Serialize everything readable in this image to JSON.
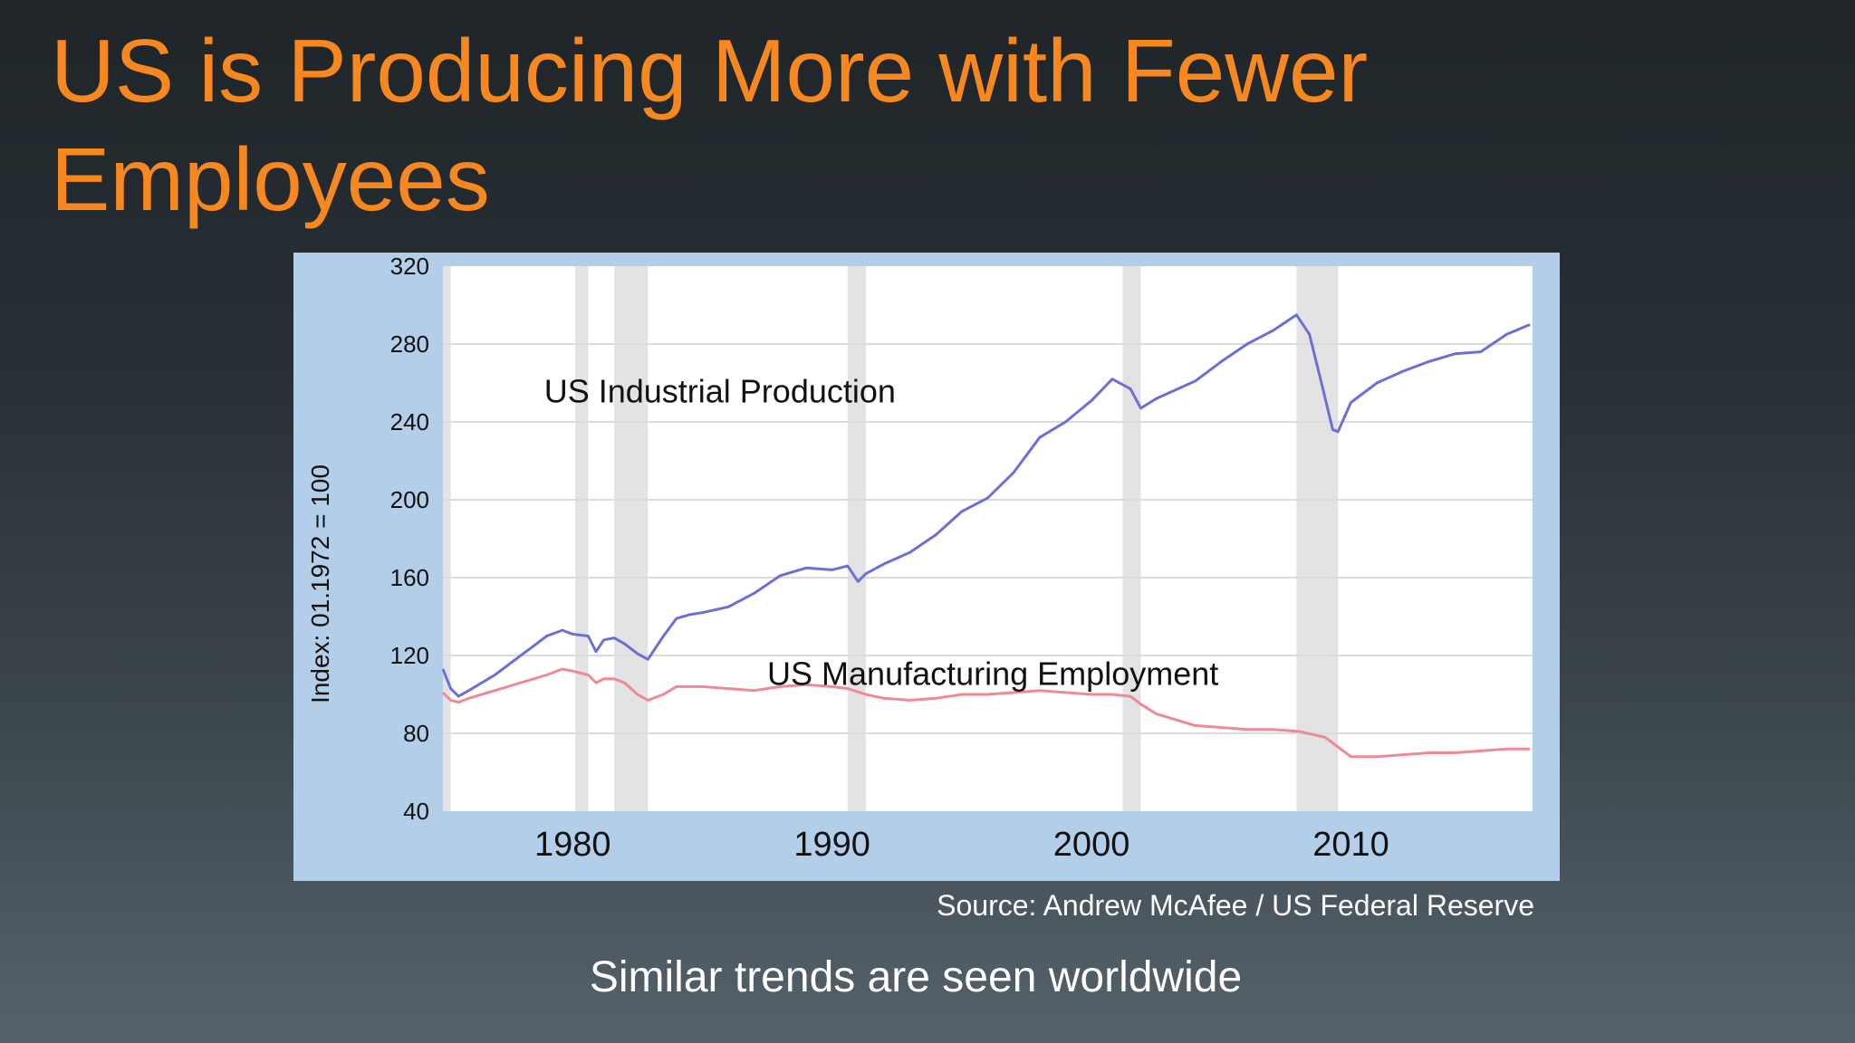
{
  "slide": {
    "title": "US is Producing More with Fewer Employees",
    "source": "Source: Andrew McAfee / US Federal Reserve",
    "caption": "Similar trends are seen worldwide"
  },
  "colors": {
    "title": "#f7871f",
    "panel": "#b3cee8",
    "plot_bg": "#ffffff",
    "grid": "#dcdcdc",
    "recession": "#e3e3e6",
    "production": "#6e6ed8",
    "employment": "#ee8a96"
  },
  "chart_data": {
    "type": "line",
    "title": "",
    "xlabel": "",
    "ylabel": "Index: 01.1972 = 100",
    "xlim": [
      1975,
      2017
    ],
    "ylim": [
      40,
      320
    ],
    "y_ticks": [
      40,
      80,
      120,
      160,
      200,
      240,
      280,
      320
    ],
    "x_ticks": [
      1980,
      1990,
      2000,
      2010
    ],
    "grid": true,
    "legend": "none",
    "recession_periods": [
      [
        1975.0,
        1975.3
      ],
      [
        1980.1,
        1980.6
      ],
      [
        1981.6,
        1982.9
      ],
      [
        1990.6,
        1991.3
      ],
      [
        2001.2,
        2001.9
      ],
      [
        2007.9,
        2009.5
      ]
    ],
    "series": [
      {
        "name": "US Industrial Production",
        "label_at": [
          1978.9,
          250
        ],
        "x": [
          1975.0,
          1975.3,
          1975.6,
          1976,
          1977,
          1978,
          1978.5,
          1979,
          1979.6,
          1980,
          1980.6,
          1980.9,
          1981.2,
          1981.6,
          1982,
          1982.5,
          1982.9,
          1983.5,
          1984,
          1984.5,
          1985,
          1986,
          1987,
          1988,
          1989,
          1990,
          1990.6,
          1991.0,
          1991.3,
          1992,
          1993,
          1994,
          1995,
          1996,
          1997,
          1998,
          1999,
          2000,
          2000.8,
          2001.5,
          2001.9,
          2002.5,
          2003,
          2004,
          2005,
          2006,
          2007,
          2007.9,
          2008.4,
          2008.9,
          2009.3,
          2009.5,
          2010,
          2011,
          2012,
          2013,
          2014,
          2015,
          2016,
          2016.9
        ],
        "values": [
          113,
          103,
          99,
          102,
          110,
          120,
          125,
          130,
          133,
          131,
          130,
          122,
          128,
          129,
          126,
          121,
          118,
          130,
          139,
          141,
          142,
          145,
          152,
          161,
          165,
          164,
          166,
          158,
          162,
          167,
          173,
          182,
          194,
          201,
          214,
          232,
          240,
          251,
          262,
          257,
          247,
          252,
          255,
          261,
          271,
          280,
          287,
          295,
          285,
          258,
          236,
          235,
          250,
          260,
          266,
          271,
          275,
          276,
          285,
          290
        ]
      },
      {
        "name": "US Manufacturing Employment",
        "label_at": [
          1987.5,
          105
        ],
        "x": [
          1975.0,
          1975.3,
          1975.6,
          1976,
          1977,
          1978,
          1979,
          1979.6,
          1980,
          1980.6,
          1980.9,
          1981.2,
          1981.6,
          1982,
          1982.5,
          1982.9,
          1983.5,
          1984,
          1984.5,
          1985,
          1986,
          1987,
          1988,
          1989,
          1990,
          1990.6,
          1991.3,
          1992,
          1993,
          1994,
          1995,
          1996,
          1997,
          1998,
          1999,
          2000,
          2000.8,
          2001.5,
          2001.9,
          2002.5,
          2003,
          2004,
          2005,
          2006,
          2007,
          2008,
          2009,
          2009.5,
          2010,
          2011,
          2012,
          2013,
          2014,
          2015,
          2016,
          2016.9
        ],
        "values": [
          101,
          97,
          96,
          98,
          102,
          106,
          110,
          113,
          112,
          110,
          106,
          108,
          108,
          106,
          100,
          97,
          100,
          104,
          104,
          104,
          103,
          102,
          104,
          105,
          104,
          103,
          100,
          98,
          97,
          98,
          100,
          100,
          101,
          102,
          101,
          100,
          100,
          99,
          95,
          90,
          88,
          84,
          83,
          82,
          82,
          81,
          78,
          73,
          68,
          68,
          69,
          70,
          70,
          71,
          72,
          72
        ]
      }
    ]
  }
}
